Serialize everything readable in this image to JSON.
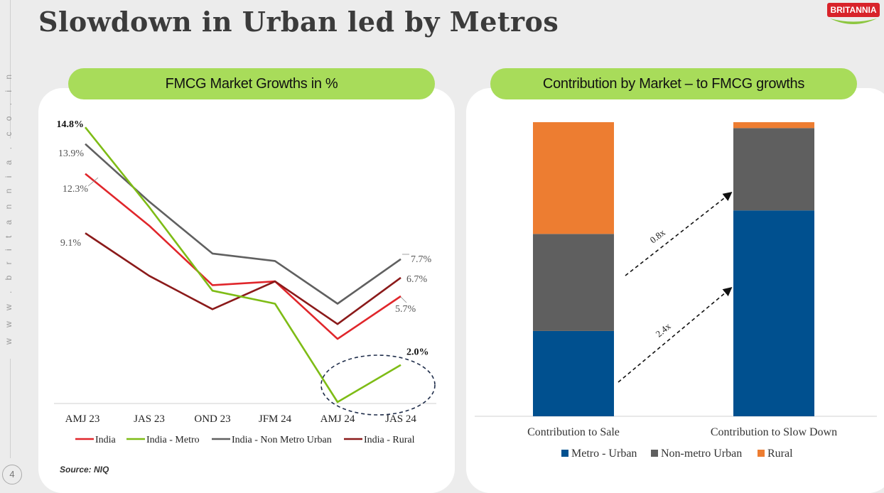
{
  "slide": {
    "title": "Slowdown in Urban led by Metros",
    "page_number": "4",
    "website": "w w w . b r i t a n n i a . c o . i n",
    "logo_text": "BRITANNIA",
    "source": "Source: NIQ"
  },
  "colors": {
    "india": "#e0262b",
    "india_metro": "#7ebc16",
    "non_metro_urban": "#606060",
    "rural": "#8b1a1a",
    "metro_urban_bar": "#00508f",
    "non_metro_bar": "#5f5f5f",
    "rural_bar": "#ed7d31",
    "pill": "#a8dc5a"
  },
  "chart_data": [
    {
      "type": "line",
      "title": "FMCG Market Growths in %",
      "categories": [
        "AMJ 23",
        "JAS 23",
        "OND 23",
        "JFM 24",
        "AMJ 24",
        "JAS 24"
      ],
      "ylim": [
        0,
        15
      ],
      "grid": false,
      "legend": "bottom",
      "series": [
        {
          "name": "India",
          "values": [
            12.3,
            9.5,
            6.3,
            6.5,
            3.4,
            5.7
          ],
          "labels": {
            "0": "12.3%",
            "5": "5.7%"
          }
        },
        {
          "name": "India - Metro",
          "values": [
            14.8,
            10.5,
            6.0,
            5.3,
            0.0,
            2.0
          ],
          "labels": {
            "0": "14.8%",
            "5": "2.0%"
          }
        },
        {
          "name": "India - Non Metro Urban",
          "values": [
            13.9,
            10.8,
            8.0,
            7.6,
            5.3,
            7.7
          ],
          "labels": {
            "0": "13.9%",
            "5": "7.7%"
          }
        },
        {
          "name": "India - Rural",
          "values": [
            9.1,
            6.8,
            5.0,
            6.5,
            4.2,
            6.7
          ],
          "labels": {
            "0": "9.1%",
            "5": "6.7%"
          }
        }
      ]
    },
    {
      "type": "bar",
      "stacked": true,
      "title": "Contribution by Market – to FMCG growths",
      "categories": [
        "Contribution to Sale",
        "Contribution to Slow Down"
      ],
      "ylim": [
        0,
        100
      ],
      "legend": "bottom",
      "series": [
        {
          "name": "Metro - Urban",
          "values": [
            29,
            70
          ]
        },
        {
          "name": "Non-metro Urban",
          "values": [
            33,
            28
          ]
        },
        {
          "name": "Rural",
          "values": [
            38,
            2
          ]
        }
      ],
      "annotations": [
        "0.8x",
        "2.4x"
      ]
    }
  ]
}
